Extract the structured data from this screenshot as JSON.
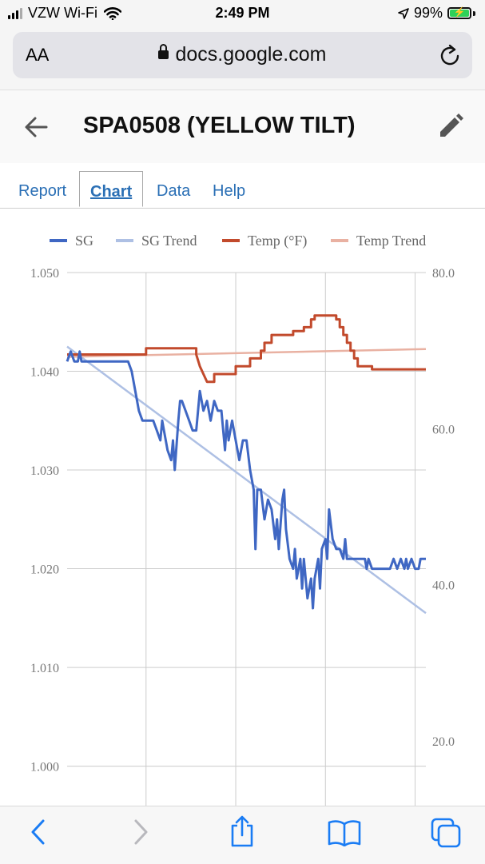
{
  "status": {
    "carrier": "VZW Wi-Fi",
    "time": "2:49 PM",
    "battery": "99%",
    "battery_level": 0.99
  },
  "browser": {
    "text_size_label": "AA",
    "domain": "docs.google.com"
  },
  "header": {
    "title": "SPA0508 (YELLOW TILT)"
  },
  "tabs": [
    {
      "label": "Report"
    },
    {
      "label": "Chart"
    },
    {
      "label": "Data"
    },
    {
      "label": "Help"
    }
  ],
  "active_tab": "Chart",
  "chart_data": {
    "type": "line",
    "legend": [
      "SG",
      "SG Trend",
      "Temp (°F)",
      "Temp Trend"
    ],
    "legend_position": "top",
    "grid": true,
    "left_axis": {
      "range": [
        0.996,
        1.05
      ],
      "ticks": [
        "1.050",
        "1.040",
        "1.030",
        "1.020",
        "1.010",
        "1.000"
      ],
      "tick_values": [
        1.05,
        1.04,
        1.03,
        1.02,
        1.01,
        1.0
      ]
    },
    "right_axis": {
      "range": [
        11.7,
        80.0
      ],
      "ticks": [
        "80.0",
        "60.0",
        "40.0",
        "20.0"
      ],
      "tick_values": [
        80,
        60,
        40,
        20
      ]
    },
    "x_range": [
      0,
      100
    ],
    "x_gridlines": [
      22,
      47,
      72,
      97
    ],
    "series": [
      {
        "name": "SG",
        "color": "#3f67c3",
        "axis": "left",
        "points": [
          [
            0,
            1.041
          ],
          [
            1,
            1.042
          ],
          [
            2,
            1.041
          ],
          [
            3,
            1.041
          ],
          [
            3.5,
            1.042
          ],
          [
            4,
            1.041
          ],
          [
            10,
            1.041
          ],
          [
            17,
            1.041
          ],
          [
            18,
            1.04
          ],
          [
            19,
            1.038
          ],
          [
            20,
            1.036
          ],
          [
            21,
            1.035
          ],
          [
            24,
            1.035
          ],
          [
            25,
            1.034
          ],
          [
            26,
            1.033
          ],
          [
            26.5,
            1.035
          ],
          [
            27,
            1.034
          ],
          [
            28,
            1.032
          ],
          [
            29,
            1.031
          ],
          [
            29.5,
            1.033
          ],
          [
            30,
            1.03
          ],
          [
            31,
            1.035
          ],
          [
            31.5,
            1.037
          ],
          [
            32,
            1.037
          ],
          [
            33,
            1.036
          ],
          [
            34,
            1.035
          ],
          [
            35,
            1.034
          ],
          [
            36,
            1.034
          ],
          [
            37,
            1.038
          ],
          [
            38,
            1.036
          ],
          [
            39,
            1.037
          ],
          [
            40,
            1.035
          ],
          [
            41,
            1.037
          ],
          [
            42,
            1.036
          ],
          [
            43,
            1.036
          ],
          [
            44,
            1.032
          ],
          [
            44.5,
            1.035
          ],
          [
            45,
            1.033
          ],
          [
            46,
            1.035
          ],
          [
            47,
            1.033
          ],
          [
            48,
            1.031
          ],
          [
            49,
            1.033
          ],
          [
            50,
            1.033
          ],
          [
            51,
            1.03
          ],
          [
            52,
            1.028
          ],
          [
            52.5,
            1.022
          ],
          [
            53,
            1.028
          ],
          [
            54,
            1.028
          ],
          [
            55,
            1.025
          ],
          [
            56,
            1.027
          ],
          [
            57,
            1.026
          ],
          [
            58,
            1.023
          ],
          [
            58.5,
            1.025
          ],
          [
            59,
            1.022
          ],
          [
            60,
            1.027
          ],
          [
            60.5,
            1.028
          ],
          [
            61,
            1.024
          ],
          [
            62,
            1.021
          ],
          [
            63,
            1.02
          ],
          [
            63.5,
            1.022
          ],
          [
            64,
            1.019
          ],
          [
            65,
            1.021
          ],
          [
            65.5,
            1.018
          ],
          [
            66,
            1.021
          ],
          [
            67,
            1.017
          ],
          [
            68,
            1.019
          ],
          [
            68.5,
            1.016
          ],
          [
            69,
            1.019
          ],
          [
            70,
            1.021
          ],
          [
            70.5,
            1.018
          ],
          [
            71,
            1.022
          ],
          [
            72,
            1.023
          ],
          [
            72.5,
            1.021
          ],
          [
            73,
            1.026
          ],
          [
            74,
            1.023
          ],
          [
            75,
            1.022
          ],
          [
            76,
            1.022
          ],
          [
            77,
            1.021
          ],
          [
            77.5,
            1.023
          ],
          [
            78,
            1.021
          ],
          [
            83,
            1.021
          ],
          [
            83.5,
            1.02
          ],
          [
            84,
            1.021
          ],
          [
            85,
            1.02
          ],
          [
            90,
            1.02
          ],
          [
            91,
            1.021
          ],
          [
            92,
            1.02
          ],
          [
            93,
            1.021
          ],
          [
            94,
            1.02
          ],
          [
            94.5,
            1.021
          ],
          [
            95,
            1.02
          ],
          [
            96,
            1.021
          ],
          [
            97,
            1.02
          ],
          [
            98,
            1.02
          ],
          [
            98.5,
            1.021
          ],
          [
            100,
            1.021
          ]
        ]
      },
      {
        "name": "SG Trend",
        "color": "#aec0e4",
        "axis": "left",
        "points": [
          [
            0,
            1.0425
          ],
          [
            100,
            1.0155
          ]
        ]
      },
      {
        "name": "Temp (°F)",
        "color": "#c24a2c",
        "axis": "right",
        "points": [
          [
            0,
            69.5
          ],
          [
            22,
            69.5
          ],
          [
            22,
            70.3
          ],
          [
            36,
            70.3
          ],
          [
            36,
            69.5
          ],
          [
            37,
            68
          ],
          [
            38,
            67
          ],
          [
            39,
            66
          ],
          [
            41,
            66
          ],
          [
            41,
            67
          ],
          [
            47,
            67
          ],
          [
            47,
            68
          ],
          [
            51,
            68
          ],
          [
            51,
            69
          ],
          [
            54,
            69
          ],
          [
            54,
            70
          ],
          [
            55,
            70
          ],
          [
            55,
            71
          ],
          [
            57,
            71
          ],
          [
            57,
            72
          ],
          [
            63,
            72
          ],
          [
            63,
            72.5
          ],
          [
            66,
            72.5
          ],
          [
            66,
            73
          ],
          [
            68,
            73
          ],
          [
            68,
            74
          ],
          [
            69,
            74
          ],
          [
            69,
            74.5
          ],
          [
            75,
            74.5
          ],
          [
            75,
            74
          ],
          [
            76,
            74
          ],
          [
            76,
            73
          ],
          [
            77,
            73
          ],
          [
            77,
            72
          ],
          [
            78,
            72
          ],
          [
            78,
            71
          ],
          [
            79,
            71
          ],
          [
            79,
            70
          ],
          [
            80,
            70
          ],
          [
            80,
            69
          ],
          [
            81,
            69
          ],
          [
            81,
            68
          ],
          [
            85,
            68
          ],
          [
            85,
            67.6
          ],
          [
            100,
            67.6
          ]
        ]
      },
      {
        "name": "Temp Trend",
        "color": "#e9b1a2",
        "axis": "right",
        "points": [
          [
            0,
            69.2
          ],
          [
            100,
            70.2
          ]
        ]
      }
    ]
  }
}
